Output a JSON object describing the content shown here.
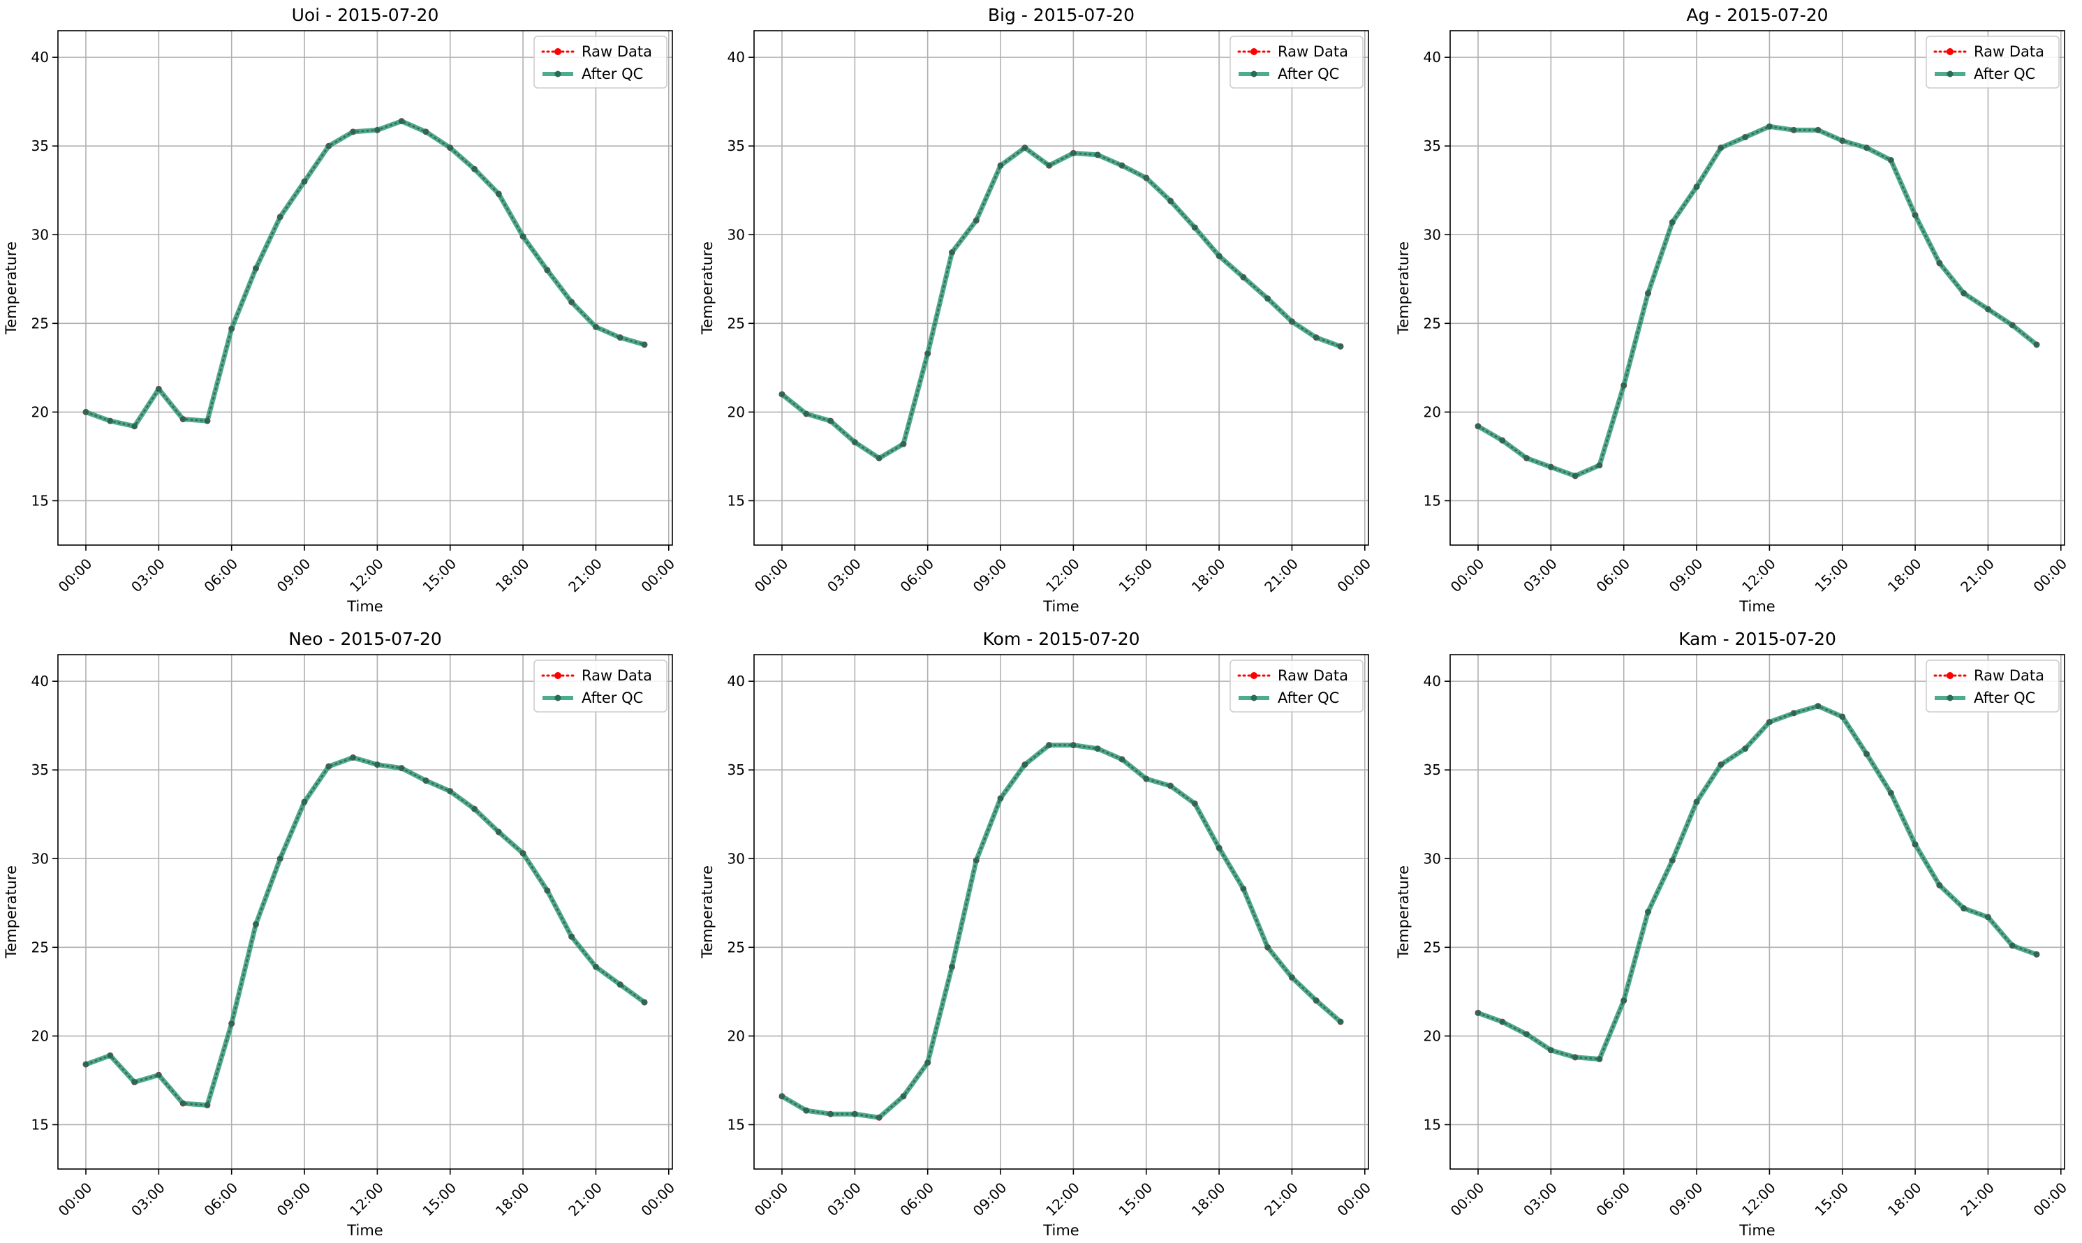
{
  "colors": {
    "raw": "#ff0000",
    "qc": "#2e9c7a",
    "grid": "#b0b0b0",
    "axes": "#000000"
  },
  "chart_data": [
    {
      "type": "line",
      "title": "Uoi - 2015-07-20",
      "xlabel": "Time",
      "ylabel": "Temperature",
      "ylim": [
        12.5,
        41.5
      ],
      "yticks": [
        15,
        20,
        25,
        30,
        35,
        40
      ],
      "xlim": [
        -1.15,
        24.15
      ],
      "xticks": [
        0,
        3,
        6,
        9,
        12,
        15,
        18,
        21,
        24
      ],
      "xtick_labels": [
        "00:00",
        "03:00",
        "06:00",
        "09:00",
        "12:00",
        "15:00",
        "18:00",
        "21:00",
        "00:00"
      ],
      "grid": true,
      "legend": "top-right",
      "x": [
        0,
        1,
        2,
        3,
        4,
        5,
        6,
        7,
        8,
        9,
        10,
        11,
        12,
        13,
        14,
        15,
        16,
        17,
        18,
        19,
        20,
        21,
        22,
        23
      ],
      "series": [
        {
          "name": "Raw Data",
          "values": [
            20.0,
            19.5,
            19.2,
            21.3,
            19.6,
            19.5,
            24.7,
            28.1,
            31.0,
            33.0,
            35.0,
            35.8,
            35.9,
            36.4,
            35.8,
            34.9,
            33.7,
            32.3,
            29.9,
            28.0,
            26.2,
            24.8,
            24.2,
            23.8
          ]
        },
        {
          "name": "After QC",
          "values": [
            20.0,
            19.5,
            19.2,
            21.3,
            19.6,
            19.5,
            24.7,
            28.1,
            31.0,
            33.0,
            35.0,
            35.8,
            35.9,
            36.4,
            35.8,
            34.9,
            33.7,
            32.3,
            29.9,
            28.0,
            26.2,
            24.8,
            24.2,
            23.8
          ]
        }
      ]
    },
    {
      "type": "line",
      "title": "Big - 2015-07-20",
      "xlabel": "Time",
      "ylabel": "Temperature",
      "ylim": [
        12.5,
        41.5
      ],
      "yticks": [
        15,
        20,
        25,
        30,
        35,
        40
      ],
      "xlim": [
        -1.15,
        24.15
      ],
      "xticks": [
        0,
        3,
        6,
        9,
        12,
        15,
        18,
        21,
        24
      ],
      "xtick_labels": [
        "00:00",
        "03:00",
        "06:00",
        "09:00",
        "12:00",
        "15:00",
        "18:00",
        "21:00",
        "00:00"
      ],
      "grid": true,
      "legend": "top-right",
      "x": [
        0,
        1,
        2,
        3,
        4,
        5,
        6,
        7,
        8,
        9,
        10,
        11,
        12,
        13,
        14,
        15,
        16,
        17,
        18,
        19,
        20,
        21,
        22,
        23
      ],
      "series": [
        {
          "name": "Raw Data",
          "values": [
            21.0,
            19.9,
            19.5,
            18.3,
            17.4,
            18.2,
            23.3,
            29.0,
            30.8,
            33.9,
            34.9,
            33.9,
            34.6,
            34.5,
            33.9,
            33.2,
            31.9,
            30.4,
            28.8,
            27.6,
            26.4,
            25.1,
            24.2,
            23.7
          ]
        },
        {
          "name": "After QC",
          "values": [
            21.0,
            19.9,
            19.5,
            18.3,
            17.4,
            18.2,
            23.3,
            29.0,
            30.8,
            33.9,
            34.9,
            33.9,
            34.6,
            34.5,
            33.9,
            33.2,
            31.9,
            30.4,
            28.8,
            27.6,
            26.4,
            25.1,
            24.2,
            23.7
          ]
        }
      ]
    },
    {
      "type": "line",
      "title": "Ag - 2015-07-20",
      "xlabel": "Time",
      "ylabel": "Temperature",
      "ylim": [
        12.5,
        41.5
      ],
      "yticks": [
        15,
        20,
        25,
        30,
        35,
        40
      ],
      "xlim": [
        -1.15,
        24.15
      ],
      "xticks": [
        0,
        3,
        6,
        9,
        12,
        15,
        18,
        21,
        24
      ],
      "xtick_labels": [
        "00:00",
        "03:00",
        "06:00",
        "09:00",
        "12:00",
        "15:00",
        "18:00",
        "21:00",
        "00:00"
      ],
      "grid": true,
      "legend": "top-right",
      "x": [
        0,
        1,
        2,
        3,
        4,
        5,
        6,
        7,
        8,
        9,
        10,
        11,
        12,
        13,
        14,
        15,
        16,
        17,
        18,
        19,
        20,
        21,
        22,
        23
      ],
      "series": [
        {
          "name": "Raw Data",
          "values": [
            19.2,
            18.4,
            17.4,
            16.9,
            16.4,
            17.0,
            21.5,
            26.7,
            30.7,
            32.7,
            34.9,
            35.5,
            36.1,
            35.9,
            35.9,
            35.3,
            34.9,
            34.2,
            31.1,
            28.4,
            26.7,
            25.8,
            24.9,
            23.8
          ]
        },
        {
          "name": "After QC",
          "values": [
            19.2,
            18.4,
            17.4,
            16.9,
            16.4,
            17.0,
            21.5,
            26.7,
            30.7,
            32.7,
            34.9,
            35.5,
            36.1,
            35.9,
            35.9,
            35.3,
            34.9,
            34.2,
            31.1,
            28.4,
            26.7,
            25.8,
            24.9,
            23.8
          ]
        }
      ]
    },
    {
      "type": "line",
      "title": "Neo - 2015-07-20",
      "xlabel": "Time",
      "ylabel": "Temperature",
      "ylim": [
        12.5,
        41.5
      ],
      "yticks": [
        15,
        20,
        25,
        30,
        35,
        40
      ],
      "xlim": [
        -1.15,
        24.15
      ],
      "xticks": [
        0,
        3,
        6,
        9,
        12,
        15,
        18,
        21,
        24
      ],
      "xtick_labels": [
        "00:00",
        "03:00",
        "06:00",
        "09:00",
        "12:00",
        "15:00",
        "18:00",
        "21:00",
        "00:00"
      ],
      "grid": true,
      "legend": "top-right",
      "x": [
        0,
        1,
        2,
        3,
        4,
        5,
        6,
        7,
        8,
        9,
        10,
        11,
        12,
        13,
        14,
        15,
        16,
        17,
        18,
        19,
        20,
        21,
        22,
        23
      ],
      "series": [
        {
          "name": "Raw Data",
          "values": [
            18.4,
            18.9,
            17.4,
            17.8,
            16.2,
            16.1,
            20.7,
            26.3,
            30.0,
            33.2,
            35.2,
            35.7,
            35.3,
            35.1,
            34.4,
            33.8,
            32.8,
            31.5,
            30.3,
            28.2,
            25.6,
            23.9,
            22.9,
            21.9
          ]
        },
        {
          "name": "After QC",
          "values": [
            18.4,
            18.9,
            17.4,
            17.8,
            16.2,
            16.1,
            20.7,
            26.3,
            30.0,
            33.2,
            35.2,
            35.7,
            35.3,
            35.1,
            34.4,
            33.8,
            32.8,
            31.5,
            30.3,
            28.2,
            25.6,
            23.9,
            22.9,
            21.9
          ]
        }
      ]
    },
    {
      "type": "line",
      "title": "Kom - 2015-07-20",
      "xlabel": "Time",
      "ylabel": "Temperature",
      "ylim": [
        12.5,
        41.5
      ],
      "yticks": [
        15,
        20,
        25,
        30,
        35,
        40
      ],
      "xlim": [
        -1.15,
        24.15
      ],
      "xticks": [
        0,
        3,
        6,
        9,
        12,
        15,
        18,
        21,
        24
      ],
      "xtick_labels": [
        "00:00",
        "03:00",
        "06:00",
        "09:00",
        "12:00",
        "15:00",
        "18:00",
        "21:00",
        "00:00"
      ],
      "grid": true,
      "legend": "top-right",
      "x": [
        0,
        1,
        2,
        3,
        4,
        5,
        6,
        7,
        8,
        9,
        10,
        11,
        12,
        13,
        14,
        15,
        16,
        17,
        18,
        19,
        20,
        21,
        22,
        23
      ],
      "series": [
        {
          "name": "Raw Data",
          "values": [
            16.6,
            15.8,
            15.6,
            15.6,
            15.4,
            16.6,
            18.5,
            23.9,
            29.9,
            33.4,
            35.3,
            36.4,
            36.4,
            36.2,
            35.6,
            34.5,
            34.1,
            33.1,
            30.6,
            28.3,
            25.0,
            23.3,
            22.0,
            20.8
          ]
        },
        {
          "name": "After QC",
          "values": [
            16.6,
            15.8,
            15.6,
            15.6,
            15.4,
            16.6,
            18.5,
            23.9,
            29.9,
            33.4,
            35.3,
            36.4,
            36.4,
            36.2,
            35.6,
            34.5,
            34.1,
            33.1,
            30.6,
            28.3,
            25.0,
            23.3,
            22.0,
            20.8
          ]
        }
      ]
    },
    {
      "type": "line",
      "title": "Kam - 2015-07-20",
      "xlabel": "Time",
      "ylabel": "Temperature",
      "ylim": [
        12.5,
        41.5
      ],
      "yticks": [
        15,
        20,
        25,
        30,
        35,
        40
      ],
      "xlim": [
        -1.15,
        24.15
      ],
      "xticks": [
        0,
        3,
        6,
        9,
        12,
        15,
        18,
        21,
        24
      ],
      "xtick_labels": [
        "00:00",
        "03:00",
        "06:00",
        "09:00",
        "12:00",
        "15:00",
        "18:00",
        "21:00",
        "00:00"
      ],
      "grid": true,
      "legend": "top-right",
      "x": [
        0,
        1,
        2,
        3,
        4,
        5,
        6,
        7,
        8,
        9,
        10,
        11,
        12,
        13,
        14,
        15,
        16,
        17,
        18,
        19,
        20,
        21,
        22,
        23
      ],
      "series": [
        {
          "name": "Raw Data",
          "values": [
            21.3,
            20.8,
            20.1,
            19.2,
            18.8,
            18.7,
            22.0,
            27.0,
            29.9,
            33.2,
            35.3,
            36.2,
            37.7,
            38.2,
            38.6,
            38.0,
            35.9,
            33.7,
            30.8,
            28.5,
            27.2,
            26.7,
            25.1,
            24.6
          ]
        },
        {
          "name": "After QC",
          "values": [
            21.3,
            20.8,
            20.1,
            19.2,
            18.8,
            18.7,
            22.0,
            27.0,
            29.9,
            33.2,
            35.3,
            36.2,
            37.7,
            38.2,
            38.6,
            38.0,
            35.9,
            33.7,
            30.8,
            28.5,
            27.2,
            26.7,
            25.1,
            24.6
          ]
        }
      ]
    }
  ]
}
